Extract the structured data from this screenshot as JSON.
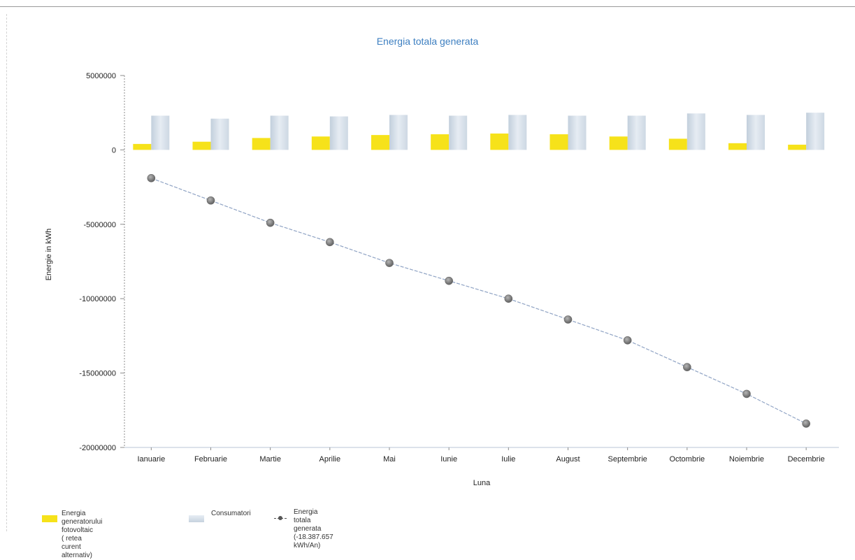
{
  "chart_data": {
    "type": "bar",
    "title": "Energia totala generata",
    "xlabel": "Luna",
    "ylabel": "Energie in kWh",
    "ylim": [
      -20000000,
      5000000
    ],
    "yticks": [
      "5000000",
      "0",
      "-5000000",
      "-10000000",
      "-15000000",
      "-20000000"
    ],
    "ytick_values": [
      5000000,
      0,
      -5000000,
      -10000000,
      -15000000,
      -20000000
    ],
    "categories": [
      "Ianuarie",
      "Februarie",
      "Martie",
      "Aprilie",
      "Mai",
      "Iunie",
      "Iulie",
      "August",
      "Septembrie",
      "Octombrie",
      "Noiembrie",
      "Decembrie"
    ],
    "grid": false,
    "legend_position": "bottom-left",
    "series": [
      {
        "name": "Energia generatorului fotovoltaic\n( retea curent alternativ)",
        "kind": "bar",
        "color": "#f6e21a",
        "values": [
          400000,
          550000,
          800000,
          900000,
          1000000,
          1050000,
          1100000,
          1050000,
          900000,
          750000,
          450000,
          350000
        ]
      },
      {
        "name": "Consumatori",
        "kind": "bar",
        "color": "#d7e0ea",
        "values": [
          2300000,
          2100000,
          2300000,
          2250000,
          2350000,
          2300000,
          2350000,
          2300000,
          2300000,
          2450000,
          2350000,
          2500000
        ]
      },
      {
        "name": "Energia totala generata (-18.387.657\nkWh/An)",
        "kind": "line",
        "color": "#555555",
        "values": [
          -1900000,
          -3400000,
          -4900000,
          -6200000,
          -7600000,
          -8800000,
          -10000000,
          -11400000,
          -12800000,
          -14600000,
          -16400000,
          -18400000
        ]
      }
    ]
  }
}
